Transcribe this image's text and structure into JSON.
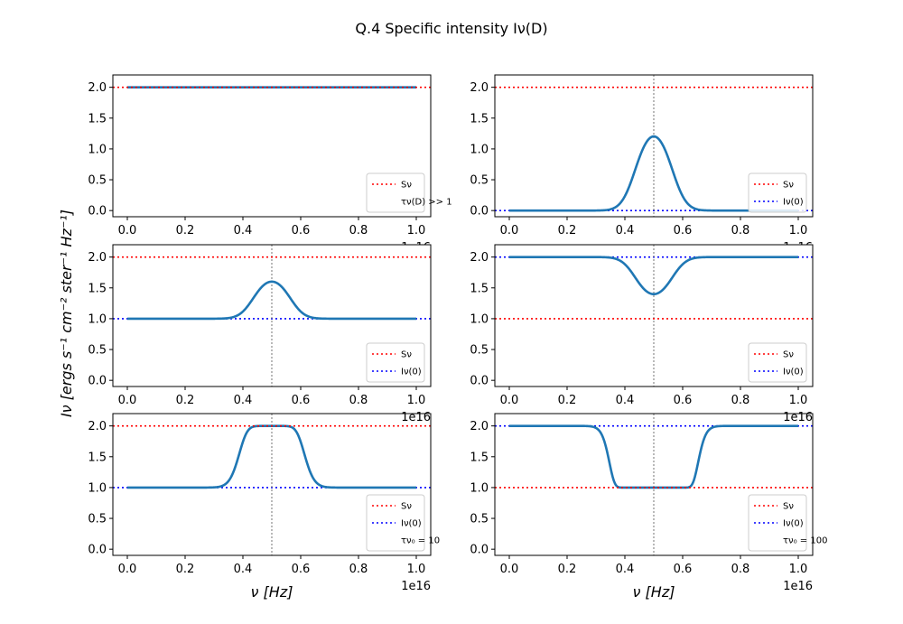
{
  "figure": {
    "title": "Q.4 Specific intensity Iν(D)",
    "xlabel": "ν [Hz]",
    "ylabel": "Iν [ergs s⁻¹ cm⁻² ster⁻¹ Hz⁻¹]",
    "x_offset_label": "1e16",
    "colors": {
      "curve": "#1f77b4",
      "source": "#ff0000",
      "initial": "#0000ff",
      "center": "#808080"
    }
  },
  "chart_data": [
    {
      "type": "line",
      "panel": "top-left",
      "xlim": [
        -0.05,
        1.05
      ],
      "ylim": [
        -0.1,
        2.2
      ],
      "xticks": [
        "0.0",
        "0.2",
        "0.4",
        "0.6",
        "0.8",
        "1.0"
      ],
      "yticks": [
        "0.0",
        "0.5",
        "1.0",
        "1.5",
        "2.0"
      ],
      "S_nu": 2.0,
      "I0": null,
      "center_line": false,
      "curve": {
        "model": "constant",
        "value": 2.0,
        "x_range": [
          0,
          1
        ]
      },
      "legend": {
        "placement": "lower right",
        "entries": [
          "Sν",
          "τν(D) >> 1"
        ]
      }
    },
    {
      "type": "line",
      "panel": "top-right",
      "xlim": [
        -0.05,
        1.05
      ],
      "ylim": [
        -0.1,
        2.2
      ],
      "xticks": [
        "0.0",
        "0.2",
        "0.4",
        "0.6",
        "0.8",
        "1.0"
      ],
      "yticks": [
        "0.0",
        "0.5",
        "1.0",
        "1.5",
        "2.0"
      ],
      "S_nu": 2.0,
      "I0": 0.0,
      "center_line": true,
      "center": 0.5,
      "curve": {
        "model": "transfer",
        "I0": 0.0,
        "S": 2.0,
        "tau0": 0.92,
        "center": 0.5,
        "sigma": 0.05,
        "x_range": [
          0,
          1
        ]
      },
      "legend": {
        "placement": "lower right",
        "entries": [
          "Sν",
          "Iν(0)"
        ]
      }
    },
    {
      "type": "line",
      "panel": "middle-left",
      "xlim": [
        -0.05,
        1.05
      ],
      "ylim": [
        -0.1,
        2.2
      ],
      "xticks": [
        "0.0",
        "0.2",
        "0.4",
        "0.6",
        "0.8",
        "1.0"
      ],
      "yticks": [
        "0.0",
        "0.5",
        "1.0",
        "1.5",
        "2.0"
      ],
      "S_nu": 2.0,
      "I0": 1.0,
      "center_line": true,
      "center": 0.5,
      "curve": {
        "model": "transfer",
        "I0": 1.0,
        "S": 2.0,
        "tau0": 0.92,
        "center": 0.5,
        "sigma": 0.05,
        "x_range": [
          0,
          1
        ]
      },
      "legend": {
        "placement": "lower right",
        "entries": [
          "Sν",
          "Iν(0)"
        ]
      }
    },
    {
      "type": "line",
      "panel": "middle-right",
      "xlim": [
        -0.05,
        1.05
      ],
      "ylim": [
        -0.1,
        2.2
      ],
      "xticks": [
        "0.0",
        "0.2",
        "0.4",
        "0.6",
        "0.8",
        "1.0"
      ],
      "yticks": [
        "0.0",
        "0.5",
        "1.0",
        "1.5",
        "2.0"
      ],
      "S_nu": 1.0,
      "I0": 2.0,
      "center_line": true,
      "center": 0.5,
      "curve": {
        "model": "transfer",
        "I0": 2.0,
        "S": 1.0,
        "tau0": 0.92,
        "center": 0.5,
        "sigma": 0.05,
        "x_range": [
          0,
          1
        ]
      },
      "legend": {
        "placement": "lower right",
        "entries": [
          "Sν",
          "Iν(0)"
        ]
      }
    },
    {
      "type": "line",
      "panel": "bottom-left",
      "xlim": [
        -0.05,
        1.05
      ],
      "ylim": [
        -0.1,
        2.2
      ],
      "xticks": [
        "0.0",
        "0.2",
        "0.4",
        "0.6",
        "0.8",
        "1.0"
      ],
      "yticks": [
        "0.0",
        "0.5",
        "1.0",
        "1.5",
        "2.0"
      ],
      "S_nu": 2.0,
      "I0": 1.0,
      "center_line": true,
      "center": 0.5,
      "curve": {
        "model": "transfer",
        "I0": 1.0,
        "S": 2.0,
        "tau0": 10,
        "center": 0.5,
        "sigma": 0.05,
        "x_range": [
          0,
          1
        ]
      },
      "legend": {
        "placement": "lower right",
        "entries": [
          "Sν",
          "Iν(0)",
          "τν₀ = 10"
        ]
      }
    },
    {
      "type": "line",
      "panel": "bottom-right",
      "xlim": [
        -0.05,
        1.05
      ],
      "ylim": [
        -0.1,
        2.2
      ],
      "xticks": [
        "0.0",
        "0.2",
        "0.4",
        "0.6",
        "0.8",
        "1.0"
      ],
      "yticks": [
        "0.0",
        "0.5",
        "1.0",
        "1.5",
        "2.0"
      ],
      "S_nu": 1.0,
      "I0": 2.0,
      "center_line": true,
      "center": 0.5,
      "curve": {
        "model": "transfer",
        "I0": 2.0,
        "S": 1.0,
        "tau0": 100,
        "center": 0.5,
        "sigma": 0.05,
        "x_range": [
          0,
          1
        ]
      },
      "legend": {
        "placement": "lower right",
        "entries": [
          "Sν",
          "Iν(0)",
          "τν₀ = 100"
        ]
      }
    }
  ]
}
